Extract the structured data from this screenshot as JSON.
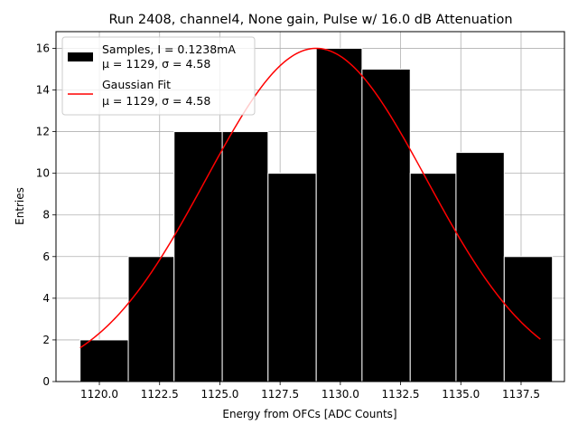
{
  "chart_data": {
    "type": "bar",
    "title": "Run 2408, channel4, None gain, Pulse w/ 16.0 dB Attenuation",
    "xlabel": "Energy from OFCs [ADC Counts]",
    "ylabel": "Entries",
    "xlim": [
      1118.2,
      1139.3
    ],
    "ylim": [
      0,
      16.8
    ],
    "xticks": [
      1120.0,
      1122.5,
      1125.0,
      1127.5,
      1130.0,
      1132.5,
      1135.0,
      1137.5
    ],
    "xtick_labels": [
      "1120.0",
      "1122.5",
      "1125.0",
      "1127.5",
      "1130.0",
      "1132.5",
      "1135.0",
      "1137.5"
    ],
    "yticks": [
      0,
      2,
      4,
      6,
      8,
      10,
      12,
      14,
      16
    ],
    "ytick_labels": [
      "0",
      "2",
      "4",
      "6",
      "8",
      "10",
      "12",
      "14",
      "16"
    ],
    "grid": true,
    "legend_position": "top-left",
    "histogram": {
      "name": "Samples, I = 0.1238mA",
      "stats": "μ = 1129, σ = 4.58",
      "color": "#000000",
      "bin_edges": [
        1119.2,
        1121.2,
        1123.1,
        1125.1,
        1127.0,
        1129.0,
        1130.9,
        1132.9,
        1134.8,
        1136.8,
        1138.8
      ],
      "counts": [
        2,
        6,
        12,
        12,
        10,
        16,
        15,
        10,
        11,
        6
      ]
    },
    "fit": {
      "name": "Gaussian Fit",
      "stats": "μ = 1129, σ = 4.58",
      "color": "#ff0000",
      "amplitude": 16.0,
      "mu": 1129.0,
      "sigma": 4.58,
      "x_range": [
        1119.2,
        1138.3
      ]
    }
  }
}
